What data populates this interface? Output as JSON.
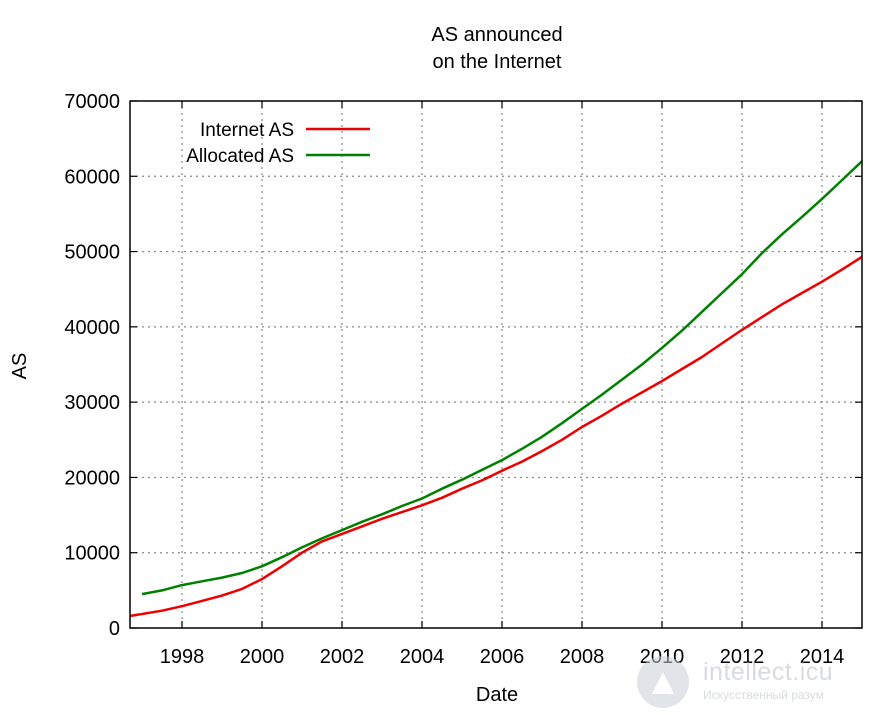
{
  "chart_data": {
    "type": "line",
    "title": [
      "AS announced",
      "on the Internet"
    ],
    "xlabel": "Date",
    "ylabel": "AS",
    "xlim": [
      1996.7,
      2015.0
    ],
    "ylim": [
      0,
      70000
    ],
    "xticks": [
      1998,
      2000,
      2002,
      2004,
      2006,
      2008,
      2010,
      2012,
      2014
    ],
    "yticks": [
      0,
      10000,
      20000,
      30000,
      40000,
      50000,
      60000,
      70000
    ],
    "grid": true,
    "legend_position": "top-left",
    "series": [
      {
        "name": "Internet AS",
        "color": "#ee0000",
        "points": [
          [
            1996.7,
            1600
          ],
          [
            1997.5,
            2300
          ],
          [
            1998.0,
            2900
          ],
          [
            1998.5,
            3600
          ],
          [
            1999.0,
            4300
          ],
          [
            1999.5,
            5200
          ],
          [
            2000.0,
            6500
          ],
          [
            2000.5,
            8200
          ],
          [
            2001.0,
            10000
          ],
          [
            2001.5,
            11500
          ],
          [
            2002.0,
            12500
          ],
          [
            2002.5,
            13500
          ],
          [
            2003.0,
            14500
          ],
          [
            2003.5,
            15400
          ],
          [
            2004.0,
            16300
          ],
          [
            2004.5,
            17300
          ],
          [
            2005.0,
            18500
          ],
          [
            2005.5,
            19600
          ],
          [
            2006.0,
            20900
          ],
          [
            2006.5,
            22100
          ],
          [
            2007.0,
            23500
          ],
          [
            2007.5,
            25000
          ],
          [
            2008.0,
            26700
          ],
          [
            2008.5,
            28200
          ],
          [
            2009.0,
            29800
          ],
          [
            2009.5,
            31300
          ],
          [
            2010.0,
            32800
          ],
          [
            2010.5,
            34400
          ],
          [
            2011.0,
            36000
          ],
          [
            2011.5,
            37800
          ],
          [
            2012.0,
            39600
          ],
          [
            2012.5,
            41300
          ],
          [
            2013.0,
            43000
          ],
          [
            2013.5,
            44500
          ],
          [
            2014.0,
            46000
          ],
          [
            2014.5,
            47600
          ],
          [
            2015.0,
            49300
          ]
        ]
      },
      {
        "name": "Allocated AS",
        "color": "#008000",
        "points": [
          [
            1997.0,
            4500
          ],
          [
            1997.5,
            5000
          ],
          [
            1998.0,
            5700
          ],
          [
            1998.5,
            6200
          ],
          [
            1999.0,
            6700
          ],
          [
            1999.5,
            7300
          ],
          [
            2000.0,
            8200
          ],
          [
            2000.5,
            9400
          ],
          [
            2001.0,
            10700
          ],
          [
            2001.5,
            11900
          ],
          [
            2002.0,
            13000
          ],
          [
            2002.5,
            14100
          ],
          [
            2003.0,
            15100
          ],
          [
            2003.5,
            16200
          ],
          [
            2004.0,
            17200
          ],
          [
            2004.5,
            18500
          ],
          [
            2005.0,
            19700
          ],
          [
            2005.5,
            21000
          ],
          [
            2006.0,
            22300
          ],
          [
            2006.5,
            23800
          ],
          [
            2007.0,
            25400
          ],
          [
            2007.5,
            27200
          ],
          [
            2008.0,
            29100
          ],
          [
            2008.5,
            31000
          ],
          [
            2009.0,
            33000
          ],
          [
            2009.5,
            35000
          ],
          [
            2010.0,
            37200
          ],
          [
            2010.5,
            39500
          ],
          [
            2011.0,
            42000
          ],
          [
            2011.5,
            44500
          ],
          [
            2012.0,
            47000
          ],
          [
            2012.5,
            49800
          ],
          [
            2013.0,
            52300
          ],
          [
            2013.5,
            54600
          ],
          [
            2014.0,
            57000
          ],
          [
            2014.5,
            59500
          ],
          [
            2015.0,
            62000
          ]
        ]
      }
    ]
  },
  "watermark": {
    "text": "intellect.icu",
    "subtext": "Искусственный разум"
  }
}
